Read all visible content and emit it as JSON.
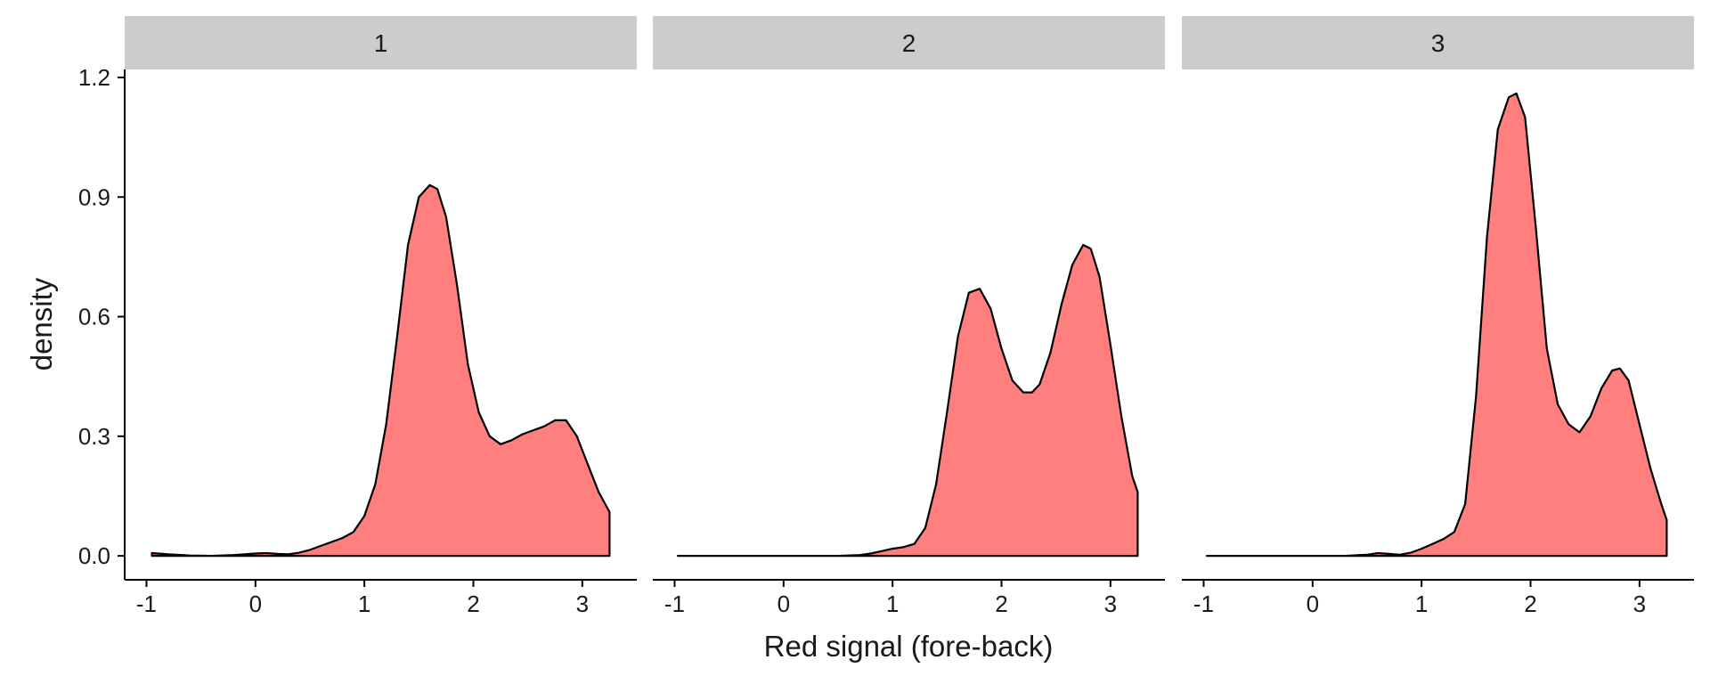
{
  "chart_data": {
    "type": "area",
    "xlabel": "Red signal (fore-back)",
    "ylabel": "density",
    "xlim": [
      -1.2,
      3.5
    ],
    "ylim": [
      -0.06,
      1.22
    ],
    "x_ticks": [
      -1,
      0,
      1,
      2,
      3
    ],
    "x_tick_labels": [
      "-1",
      "0",
      "1",
      "2",
      "3"
    ],
    "y_ticks": [
      0.0,
      0.3,
      0.6,
      0.9,
      1.2
    ],
    "y_tick_labels": [
      "0.0",
      "0.3",
      "0.6",
      "0.9",
      "1.2"
    ],
    "grid": false,
    "colors": {
      "fill": "#ff7f7f",
      "line": "#000000",
      "strip": "#cccccc"
    },
    "facets": [
      {
        "label": "1",
        "x": [
          -0.95,
          -0.8,
          -0.6,
          -0.4,
          -0.2,
          0.0,
          0.1,
          0.2,
          0.3,
          0.4,
          0.5,
          0.6,
          0.7,
          0.8,
          0.9,
          1.0,
          1.1,
          1.2,
          1.3,
          1.4,
          1.5,
          1.6,
          1.67,
          1.75,
          1.85,
          1.95,
          2.05,
          2.15,
          2.25,
          2.35,
          2.45,
          2.55,
          2.65,
          2.75,
          2.85,
          2.95,
          3.05,
          3.15,
          3.25
        ],
        "y": [
          0.007,
          0.004,
          0.001,
          0.0,
          0.002,
          0.006,
          0.007,
          0.005,
          0.004,
          0.008,
          0.015,
          0.025,
          0.035,
          0.045,
          0.06,
          0.1,
          0.18,
          0.33,
          0.55,
          0.78,
          0.9,
          0.93,
          0.92,
          0.85,
          0.68,
          0.48,
          0.36,
          0.3,
          0.28,
          0.29,
          0.305,
          0.315,
          0.325,
          0.34,
          0.34,
          0.3,
          0.23,
          0.16,
          0.11
        ]
      },
      {
        "label": "2",
        "x": [
          -0.97,
          -0.5,
          0.0,
          0.5,
          0.7,
          0.8,
          0.9,
          1.0,
          1.1,
          1.2,
          1.3,
          1.4,
          1.5,
          1.6,
          1.7,
          1.8,
          1.9,
          2.0,
          2.1,
          2.2,
          2.28,
          2.35,
          2.45,
          2.55,
          2.65,
          2.75,
          2.82,
          2.9,
          3.0,
          3.1,
          3.2,
          3.25
        ],
        "y": [
          0.0,
          0.0,
          0.0,
          0.0,
          0.002,
          0.006,
          0.012,
          0.018,
          0.022,
          0.03,
          0.07,
          0.18,
          0.36,
          0.55,
          0.66,
          0.67,
          0.62,
          0.52,
          0.44,
          0.41,
          0.41,
          0.43,
          0.51,
          0.63,
          0.73,
          0.78,
          0.77,
          0.7,
          0.53,
          0.35,
          0.2,
          0.16
        ]
      },
      {
        "label": "3",
        "x": [
          -0.97,
          -0.5,
          0.0,
          0.3,
          0.5,
          0.6,
          0.7,
          0.8,
          0.9,
          1.0,
          1.1,
          1.2,
          1.3,
          1.4,
          1.5,
          1.6,
          1.7,
          1.8,
          1.87,
          1.95,
          2.05,
          2.15,
          2.25,
          2.35,
          2.45,
          2.55,
          2.65,
          2.75,
          2.82,
          2.9,
          3.0,
          3.1,
          3.2,
          3.25
        ],
        "y": [
          0.0,
          0.0,
          0.0,
          0.0,
          0.003,
          0.007,
          0.005,
          0.003,
          0.008,
          0.018,
          0.03,
          0.042,
          0.06,
          0.13,
          0.4,
          0.8,
          1.07,
          1.15,
          1.16,
          1.1,
          0.82,
          0.52,
          0.38,
          0.33,
          0.31,
          0.35,
          0.42,
          0.465,
          0.47,
          0.44,
          0.33,
          0.22,
          0.13,
          0.09
        ]
      }
    ]
  }
}
